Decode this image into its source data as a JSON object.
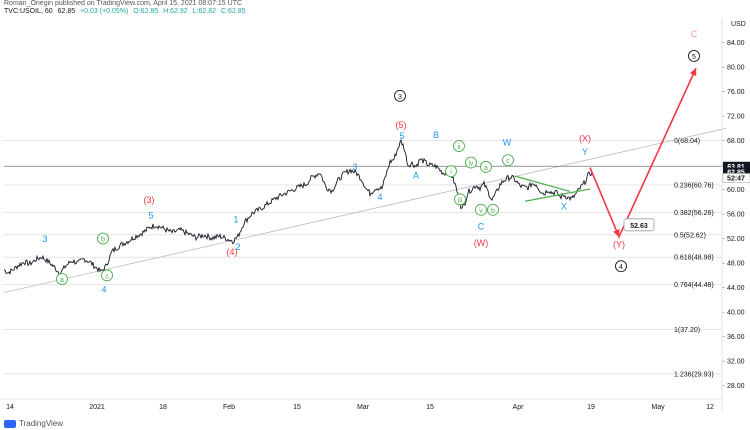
{
  "header": {
    "publish_line": "Roman_Onegin published on TradingView.com, April 15, 2021 08:07:15 UTC",
    "symbol": "TVC:USOIL, 60",
    "price": "62.85",
    "change": "+0.03 (+0.05%)",
    "open": "O:62.85",
    "high": "H:62.92",
    "low": "L:62.82",
    "close": "C:62.85"
  },
  "footer": {
    "brand": "TradingView"
  },
  "colors": {
    "price": "#131722",
    "blue": "#2196f3",
    "red": "#f23645",
    "green": "#4caf50",
    "fib": "#9e9e9e",
    "axis_text": "#131722",
    "arrow": "#f23645",
    "pink": "#f48fb1"
  },
  "chart_data": {
    "type": "line",
    "title": "",
    "xlabel": "",
    "ylabel": "",
    "currency_label": "USD",
    "ylim": [
      26,
      88
    ],
    "y_ticks": [
      84.0,
      80.0,
      76.0,
      72.0,
      68.0,
      64.0,
      60.0,
      56.0,
      52.0,
      48.0,
      44.0,
      40.0,
      36.0,
      32.0,
      28.0
    ],
    "x_ticks": [
      "14",
      "2021",
      "18",
      "Feb",
      "15",
      "Mar",
      "15",
      "Apr",
      "19",
      "May",
      "12"
    ],
    "price_labels": [
      {
        "text": "63.81",
        "value": 63.81,
        "style": "dark"
      },
      {
        "text": "62.85",
        "value": 62.85,
        "style": "dark"
      },
      {
        "text": "52:47",
        "value": 61.9,
        "style": "light"
      }
    ],
    "fib_levels": [
      {
        "label": "0(68.04)",
        "value": 68.04
      },
      {
        "label": "0.236(60.76)",
        "value": 60.76
      },
      {
        "label": "0.382(56.26)",
        "value": 56.26
      },
      {
        "label": "0.5(52.62)",
        "value": 52.62
      },
      {
        "label": "0.618(48.98)",
        "value": 48.98
      },
      {
        "label": "0.764(44.48)",
        "value": 44.48
      },
      {
        "label": "1(37.20)",
        "value": 37.2
      },
      {
        "label": "1.236(29.93)",
        "value": 29.93
      }
    ],
    "series": [
      {
        "values": [
          [
            0,
            46.9
          ],
          [
            4,
            46.5
          ],
          [
            8,
            46.8
          ],
          [
            14,
            47.6
          ],
          [
            20,
            48.2
          ],
          [
            26,
            47.9
          ],
          [
            32,
            48.6
          ],
          [
            38,
            49.0
          ],
          [
            44,
            48.3
          ],
          [
            50,
            47.4
          ],
          [
            56,
            46.3
          ],
          [
            62,
            47.6
          ],
          [
            68,
            48.4
          ],
          [
            74,
            48.0
          ],
          [
            80,
            48.7
          ],
          [
            86,
            48.2
          ],
          [
            92,
            47.3
          ],
          [
            97,
            46.6
          ],
          [
            102,
            47.5
          ],
          [
            108,
            49.9
          ],
          [
            116,
            50.9
          ],
          [
            124,
            51.6
          ],
          [
            132,
            52.4
          ],
          [
            140,
            53.1
          ],
          [
            146,
            53.9
          ],
          [
            152,
            54.2
          ],
          [
            160,
            53.6
          ],
          [
            168,
            53.0
          ],
          [
            176,
            53.4
          ],
          [
            184,
            52.8
          ],
          [
            192,
            52.2
          ],
          [
            200,
            52.6
          ],
          [
            208,
            52.1
          ],
          [
            216,
            52.4
          ],
          [
            224,
            51.9
          ],
          [
            229,
            51.6
          ],
          [
            234,
            52.4
          ],
          [
            240,
            54.6
          ],
          [
            248,
            56.1
          ],
          [
            256,
            56.8
          ],
          [
            264,
            57.7
          ],
          [
            272,
            58.6
          ],
          [
            280,
            59.3
          ],
          [
            288,
            59.9
          ],
          [
            296,
            60.5
          ],
          [
            302,
            60.9
          ],
          [
            308,
            62.0
          ],
          [
            316,
            62.8
          ],
          [
            322,
            60.4
          ],
          [
            328,
            59.8
          ],
          [
            334,
            61.5
          ],
          [
            340,
            62.6
          ],
          [
            346,
            63.2
          ],
          [
            352,
            62.8
          ],
          [
            358,
            61.6
          ],
          [
            362,
            60.2
          ],
          [
            366,
            59.4
          ],
          [
            372,
            60.3
          ],
          [
            378,
            60.2
          ],
          [
            382,
            62.4
          ],
          [
            386,
            64.5
          ],
          [
            390,
            65.0
          ],
          [
            394,
            66.8
          ],
          [
            397,
            67.9
          ],
          [
            400,
            66.9
          ],
          [
            404,
            64.0
          ],
          [
            408,
            64.3
          ],
          [
            412,
            63.8
          ],
          [
            416,
            64.9
          ],
          [
            420,
            64.6
          ],
          [
            424,
            64.1
          ],
          [
            428,
            63.9
          ],
          [
            432,
            63.8
          ],
          [
            436,
            63.2
          ],
          [
            440,
            62.6
          ],
          [
            444,
            63.1
          ],
          [
            448,
            62.2
          ],
          [
            452,
            60.4
          ],
          [
            455,
            58.4
          ],
          [
            458,
            56.8
          ],
          [
            461,
            57.9
          ],
          [
            464,
            59.6
          ],
          [
            468,
            60.1
          ],
          [
            472,
            60.7
          ],
          [
            476,
            60.3
          ],
          [
            480,
            60.9
          ],
          [
            484,
            59.7
          ],
          [
            488,
            58.3
          ],
          [
            492,
            59.4
          ],
          [
            496,
            60.8
          ],
          [
            500,
            61.5
          ],
          [
            504,
            61.9
          ],
          [
            508,
            62.0
          ],
          [
            512,
            61.4
          ],
          [
            516,
            60.6
          ],
          [
            520,
            60.4
          ],
          [
            524,
            60.3
          ],
          [
            528,
            61.0
          ],
          [
            532,
            60.9
          ],
          [
            536,
            59.9
          ],
          [
            540,
            59.3
          ],
          [
            544,
            60.0
          ],
          [
            548,
            59.5
          ],
          [
            552,
            59.6
          ],
          [
            556,
            58.8
          ],
          [
            560,
            59.1
          ],
          [
            564,
            58.7
          ],
          [
            568,
            58.5
          ],
          [
            572,
            59.3
          ],
          [
            576,
            60.2
          ],
          [
            580,
            61.0
          ],
          [
            584,
            62.3
          ],
          [
            588,
            62.85
          ]
        ]
      }
    ],
    "trendlines": [
      {
        "from": [
          0,
          43.2
        ],
        "to": [
          722,
          70.0
        ],
        "color": "#bdbdbd"
      },
      {
        "from": [
          0,
          63.81
        ],
        "to": [
          722,
          63.81
        ],
        "color": "#757575"
      }
    ],
    "projection": [
      [
        586,
        63.6
      ],
      [
        615,
        52.3
      ],
      [
        692,
        79.8
      ]
    ],
    "projection_label": "52.63",
    "wave_labels": [
      {
        "text": "3",
        "t": 41,
        "v": 51.5,
        "color": "#2196f3"
      },
      {
        "text": "a",
        "t": 58,
        "v": 45.0,
        "color": "#4caf50",
        "circle": true
      },
      {
        "text": "b",
        "t": 99,
        "v": 51.6,
        "color": "#4caf50",
        "circle": true
      },
      {
        "text": "c",
        "t": 103,
        "v": 45.6,
        "color": "#4caf50",
        "circle": true
      },
      {
        "text": "4",
        "t": 100,
        "v": 43.3,
        "color": "#2196f3"
      },
      {
        "text": "(3)",
        "t": 145,
        "v": 57.9,
        "color": "#f23645"
      },
      {
        "text": "5",
        "t": 147,
        "v": 55.4,
        "color": "#2196f3"
      },
      {
        "text": "1",
        "t": 232,
        "v": 54.7,
        "color": "#2196f3"
      },
      {
        "text": "2",
        "t": 234,
        "v": 50.2,
        "color": "#2196f3"
      },
      {
        "text": "(4)",
        "t": 228,
        "v": 49.4,
        "color": "#f23645"
      },
      {
        "text": "3",
        "t": 351,
        "v": 63.3,
        "color": "#2196f3"
      },
      {
        "text": "4",
        "t": 376,
        "v": 58.4,
        "color": "#2196f3"
      },
      {
        "text": "3",
        "t": 396,
        "v": 74.9,
        "color": "#131722",
        "circle": true
      },
      {
        "text": "(5)",
        "t": 397,
        "v": 70.1,
        "color": "#f23645"
      },
      {
        "text": "5",
        "t": 398,
        "v": 68.3,
        "color": "#2196f3"
      },
      {
        "text": "B",
        "t": 432,
        "v": 68.5,
        "color": "#2196f3"
      },
      {
        "text": "A",
        "t": 412,
        "v": 61.9,
        "color": "#2196f3"
      },
      {
        "text": "ii",
        "t": 455,
        "v": 66.7,
        "color": "#4caf50",
        "circle": true
      },
      {
        "text": "i",
        "t": 447,
        "v": 62.6,
        "color": "#4caf50",
        "circle": true
      },
      {
        "text": "iv",
        "t": 467,
        "v": 64.0,
        "color": "#4caf50",
        "circle": true
      },
      {
        "text": "iii",
        "t": 456,
        "v": 58.0,
        "color": "#4caf50",
        "circle": true
      },
      {
        "text": "a",
        "t": 482,
        "v": 63.3,
        "color": "#4caf50",
        "circle": true
      },
      {
        "text": "v",
        "t": 477,
        "v": 56.3,
        "color": "#4caf50",
        "circle": true
      },
      {
        "text": "b",
        "t": 489,
        "v": 56.3,
        "color": "#4caf50",
        "circle": true
      },
      {
        "text": "c",
        "t": 504,
        "v": 64.4,
        "color": "#4caf50",
        "circle": true
      },
      {
        "text": "W",
        "t": 503,
        "v": 67.3,
        "color": "#2196f3"
      },
      {
        "text": "C",
        "t": 477,
        "v": 53.6,
        "color": "#2196f3"
      },
      {
        "text": "(W)",
        "t": 477,
        "v": 50.9,
        "color": "#f23645"
      },
      {
        "text": "(X)",
        "t": 581,
        "v": 67.9,
        "color": "#f23645"
      },
      {
        "text": "Y",
        "t": 581,
        "v": 65.7,
        "color": "#2196f3"
      },
      {
        "text": "X",
        "t": 560,
        "v": 56.8,
        "color": "#2196f3"
      },
      {
        "text": "(Y)",
        "t": 615,
        "v": 50.6,
        "color": "#f23645"
      },
      {
        "text": "4",
        "t": 617,
        "v": 47.1,
        "color": "#131722",
        "circle": true
      },
      {
        "text": "C",
        "t": 690,
        "v": 85.0,
        "color": "#f48fb1"
      },
      {
        "text": "5",
        "t": 690,
        "v": 81.4,
        "color": "#131722",
        "circle": true
      }
    ],
    "triangle": {
      "upper": [
        [
          511,
          62.2
        ],
        [
          566,
          59.7
        ]
      ],
      "lower": [
        [
          521,
          58.1
        ],
        [
          586,
          60.1
        ]
      ]
    },
    "grid": false,
    "legend": "none"
  }
}
